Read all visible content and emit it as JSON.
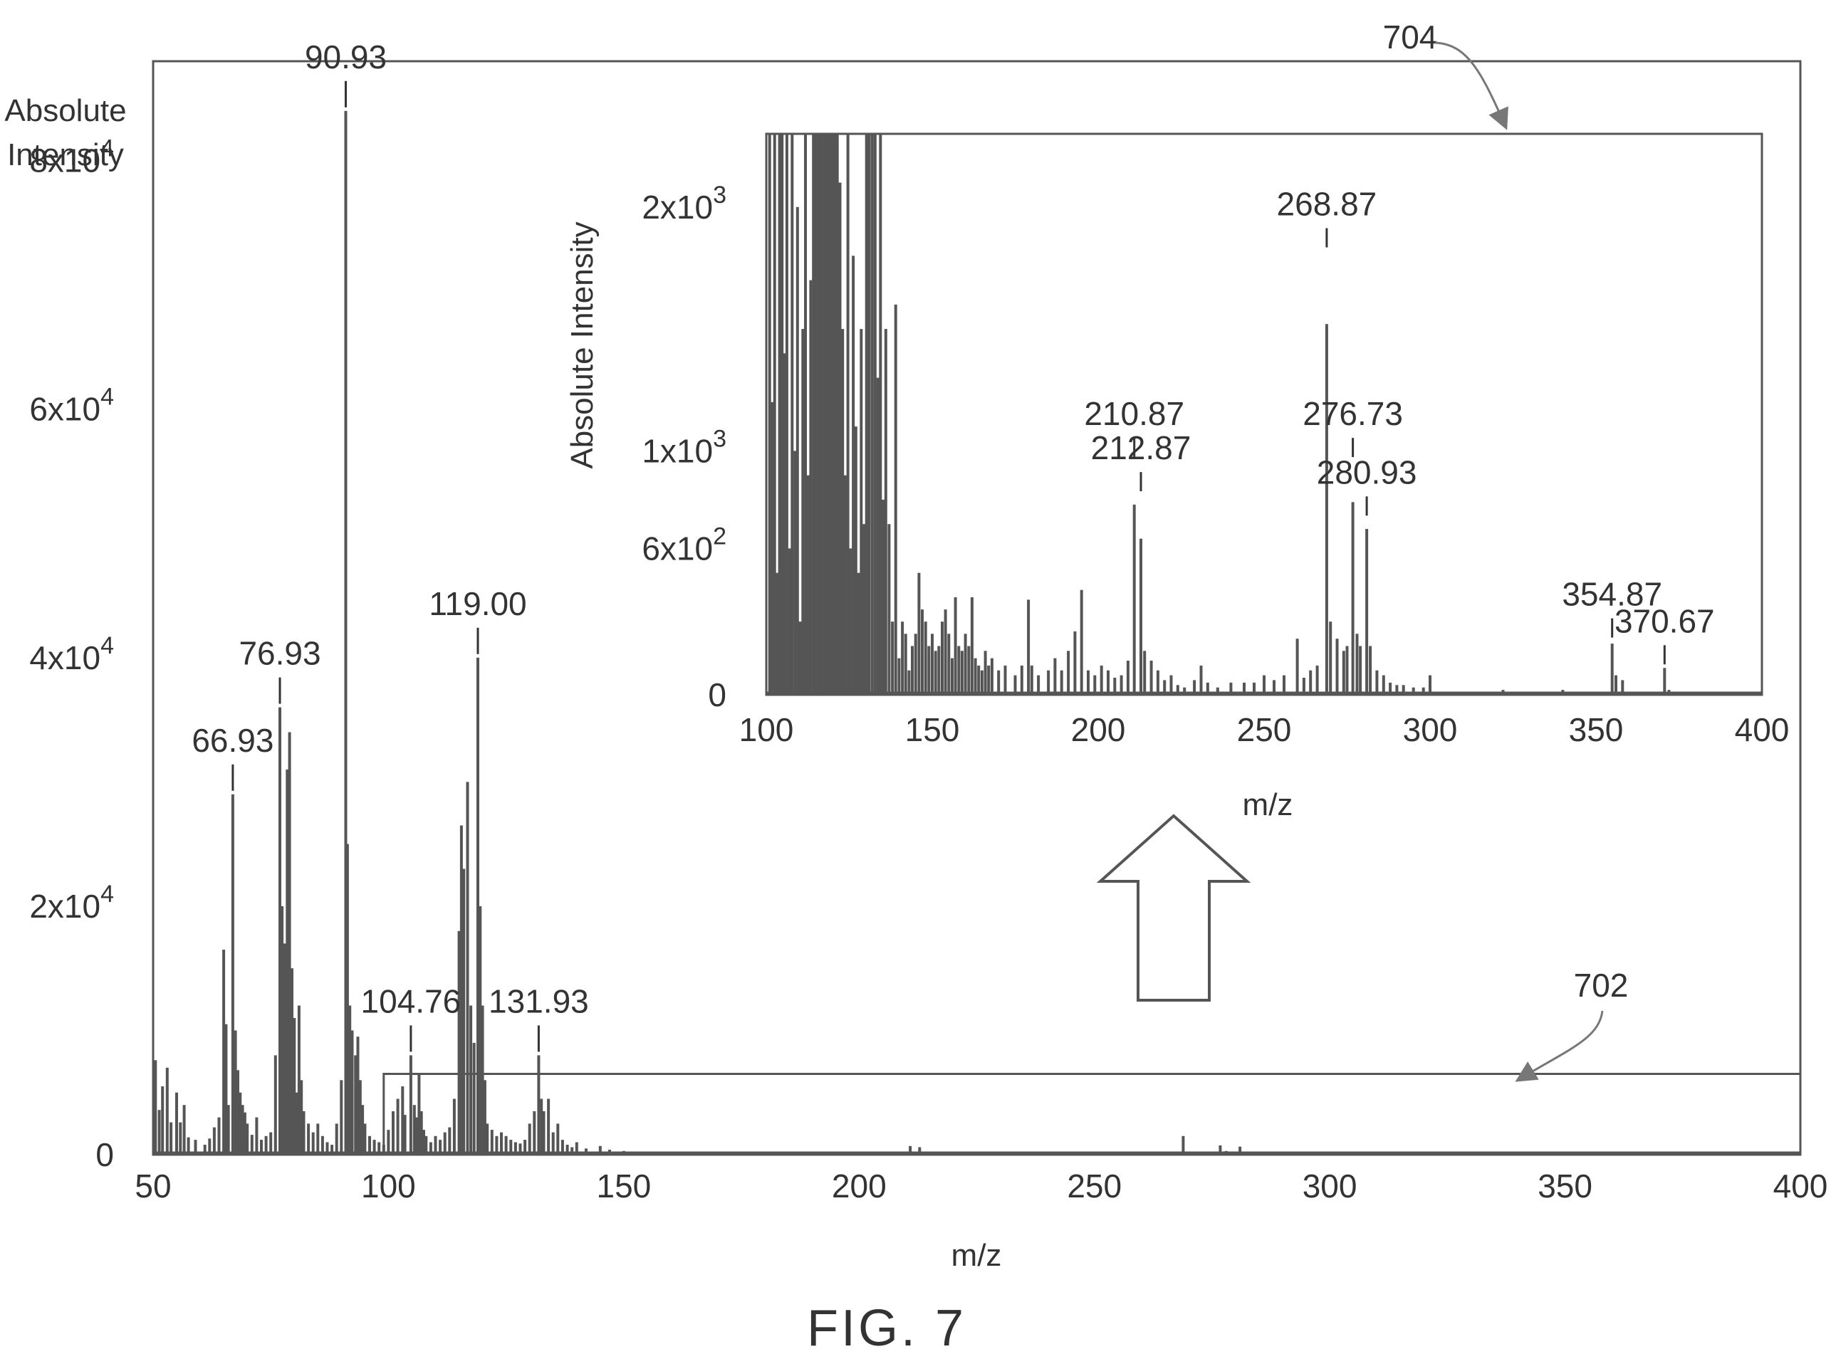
{
  "figure": {
    "caption": "FIG. 7"
  },
  "colors": {
    "ink": "#333333",
    "bars": "#555555",
    "paper": "#ffffff"
  },
  "callouts": {
    "main_box": "702",
    "inset_box": "704"
  },
  "chart_data": [
    {
      "id": "main",
      "type": "bar",
      "xlabel": "m/z",
      "ylabel_lines": [
        "Absolute",
        "Intensity"
      ],
      "xlim": [
        50,
        400
      ],
      "ylim": [
        0,
        88000
      ],
      "xticks": [
        50,
        100,
        150,
        200,
        250,
        300,
        350,
        400
      ],
      "yticks": [
        {
          "value": 0,
          "base": "0",
          "exp": ""
        },
        {
          "value": 20000,
          "base": "2x10",
          "exp": "4"
        },
        {
          "value": 40000,
          "base": "4x10",
          "exp": "4"
        },
        {
          "value": 60000,
          "base": "6x10",
          "exp": "4"
        },
        {
          "value": 80000,
          "base": "8x10",
          "exp": "4"
        }
      ],
      "grid": false,
      "zoom_region": {
        "x": [
          99,
          400
        ],
        "y": [
          0,
          6500
        ]
      },
      "peak_labels": [
        {
          "x": 66.93,
          "text": "66.93",
          "y": 29000
        },
        {
          "x": 76.93,
          "text": "76.93",
          "y": 36000
        },
        {
          "x": 90.93,
          "text": "90.93",
          "y": 84000
        },
        {
          "x": 104.76,
          "text": "104.76",
          "y": 8000
        },
        {
          "x": 119.0,
          "text": "119.00",
          "y": 40000
        },
        {
          "x": 131.93,
          "text": "131.93",
          "y": 8000
        }
      ],
      "peaks": [
        [
          50.5,
          7600
        ],
        [
          51.3,
          3600
        ],
        [
          52,
          5500
        ],
        [
          53,
          7000
        ],
        [
          53.8,
          2600
        ],
        [
          55,
          5000
        ],
        [
          55.8,
          2600
        ],
        [
          56.6,
          4000
        ],
        [
          57.5,
          1400
        ],
        [
          59,
          1200
        ],
        [
          61,
          800
        ],
        [
          62,
          1300
        ],
        [
          63,
          2200
        ],
        [
          64,
          3000
        ],
        [
          65,
          16500
        ],
        [
          65.5,
          10500
        ],
        [
          66,
          4000
        ],
        [
          66.93,
          29000
        ],
        [
          67.5,
          10000
        ],
        [
          68,
          6800
        ],
        [
          68.5,
          5000
        ],
        [
          69,
          4000
        ],
        [
          69.5,
          3400
        ],
        [
          70,
          2500
        ],
        [
          71,
          1600
        ],
        [
          72,
          3000
        ],
        [
          73,
          1200
        ],
        [
          74,
          1500
        ],
        [
          75,
          1800
        ],
        [
          76,
          8000
        ],
        [
          76.93,
          36000
        ],
        [
          77.4,
          20000
        ],
        [
          78,
          17000
        ],
        [
          78.5,
          31000
        ],
        [
          79,
          34000
        ],
        [
          79.5,
          15000
        ],
        [
          80,
          11000
        ],
        [
          80.5,
          5000
        ],
        [
          81,
          12000
        ],
        [
          81.5,
          6000
        ],
        [
          82,
          3500
        ],
        [
          83,
          2500
        ],
        [
          84,
          1800
        ],
        [
          85,
          2500
        ],
        [
          86,
          1500
        ],
        [
          87,
          1000
        ],
        [
          88,
          800
        ],
        [
          89,
          2500
        ],
        [
          90,
          6000
        ],
        [
          90.93,
          84000
        ],
        [
          91.3,
          25000
        ],
        [
          91.8,
          12000
        ],
        [
          92.3,
          10000
        ],
        [
          93,
          8000
        ],
        [
          93.5,
          9500
        ],
        [
          94,
          6000
        ],
        [
          94.5,
          4000
        ],
        [
          95,
          2500
        ],
        [
          96,
          1500
        ],
        [
          97,
          1200
        ],
        [
          98,
          1000
        ],
        [
          99,
          800
        ],
        [
          100,
          2000
        ],
        [
          101,
          3500
        ],
        [
          102,
          4500
        ],
        [
          103,
          5500
        ],
        [
          103.5,
          3200
        ],
        [
          104.76,
          8000
        ],
        [
          105.5,
          4000
        ],
        [
          106,
          3000
        ],
        [
          106.5,
          6500
        ],
        [
          107,
          3500
        ],
        [
          107.5,
          2000
        ],
        [
          108,
          1500
        ],
        [
          109,
          1000
        ],
        [
          110,
          1500
        ],
        [
          111,
          1200
        ],
        [
          112,
          1800
        ],
        [
          113,
          2200
        ],
        [
          114,
          4500
        ],
        [
          115,
          18000
        ],
        [
          115.5,
          26500
        ],
        [
          116,
          23000
        ],
        [
          116.8,
          30000
        ],
        [
          117.5,
          12000
        ],
        [
          118.2,
          9000
        ],
        [
          119.0,
          40000
        ],
        [
          119.5,
          20000
        ],
        [
          120,
          12000
        ],
        [
          120.5,
          6000
        ],
        [
          121,
          2500
        ],
        [
          122,
          2000
        ],
        [
          123,
          1500
        ],
        [
          124,
          1800
        ],
        [
          125,
          1500
        ],
        [
          126,
          1200
        ],
        [
          127,
          1000
        ],
        [
          128,
          900
        ],
        [
          129,
          1200
        ],
        [
          130,
          2500
        ],
        [
          131,
          3500
        ],
        [
          131.93,
          8000
        ],
        [
          132.5,
          4500
        ],
        [
          133,
          3500
        ],
        [
          134,
          4500
        ],
        [
          135,
          1800
        ],
        [
          136,
          2500
        ],
        [
          137,
          1200
        ],
        [
          138,
          800
        ],
        [
          139,
          600
        ],
        [
          140,
          1000
        ],
        [
          142,
          500
        ],
        [
          145,
          700
        ],
        [
          147,
          400
        ],
        [
          150,
          300
        ],
        [
          152,
          200
        ],
        [
          155,
          200
        ],
        [
          158,
          150
        ],
        [
          160,
          150
        ],
        [
          165,
          200
        ],
        [
          170,
          150
        ],
        [
          175,
          100
        ],
        [
          180,
          150
        ],
        [
          185,
          100
        ],
        [
          190,
          150
        ],
        [
          195,
          100
        ],
        [
          200,
          100
        ],
        [
          205,
          120
        ],
        [
          210.87,
          700
        ],
        [
          212.87,
          600
        ],
        [
          215,
          150
        ],
        [
          220,
          100
        ],
        [
          230,
          100
        ],
        [
          240,
          100
        ],
        [
          250,
          100
        ],
        [
          260,
          100
        ],
        [
          268.87,
          1500
        ],
        [
          270,
          200
        ],
        [
          274,
          150
        ],
        [
          276.73,
          750
        ],
        [
          278,
          300
        ],
        [
          280.93,
          650
        ],
        [
          282,
          200
        ],
        [
          290,
          100
        ],
        [
          300,
          100
        ],
        [
          320,
          80
        ],
        [
          354.87,
          150
        ],
        [
          370.67,
          100
        ]
      ]
    },
    {
      "id": "inset",
      "type": "bar",
      "xlabel": "m/z",
      "ylabel_lines": [
        "Absolute Intensity"
      ],
      "xlim": [
        100,
        400
      ],
      "ylim": [
        0,
        2300
      ],
      "xticks": [
        100,
        150,
        200,
        250,
        300,
        350,
        400
      ],
      "yticks": [
        {
          "value": 0,
          "base": "0",
          "exp": ""
        },
        {
          "value": 600,
          "base": "6x10",
          "exp": "2"
        },
        {
          "value": 1000,
          "base": "1x10",
          "exp": "3"
        },
        {
          "value": 2000,
          "base": "2x10",
          "exp": "3"
        }
      ],
      "grid": false,
      "peak_labels": [
        {
          "x": 210.87,
          "text": "210.87",
          "y": 960
        },
        {
          "x": 212.87,
          "text": "212.87",
          "y": 820
        },
        {
          "x": 268.87,
          "text": "268.87",
          "y": 1820
        },
        {
          "x": 276.73,
          "text": "276.73",
          "y": 960
        },
        {
          "x": 280.93,
          "text": "280.93",
          "y": 720
        },
        {
          "x": 354.87,
          "text": "354.87",
          "y": 220
        },
        {
          "x": 370.67,
          "text": "370.67",
          "y": 110
        }
      ],
      "peaks": [
        [
          101,
          2300
        ],
        [
          101.8,
          1200
        ],
        [
          102.5,
          2300
        ],
        [
          103.3,
          500
        ],
        [
          104,
          2300
        ],
        [
          104.76,
          2300
        ],
        [
          105.5,
          1400
        ],
        [
          106.2,
          2300
        ],
        [
          107,
          600
        ],
        [
          107.8,
          2300
        ],
        [
          108.6,
          1000
        ],
        [
          109.4,
          2000
        ],
        [
          110.2,
          300
        ],
        [
          111,
          1500
        ],
        [
          111.8,
          2300
        ],
        [
          112.6,
          900
        ],
        [
          113.4,
          1700
        ],
        [
          114.2,
          2300
        ],
        [
          115,
          2300
        ],
        [
          115.8,
          2300
        ],
        [
          116.6,
          2300
        ],
        [
          117.4,
          2300
        ],
        [
          118.2,
          2300
        ],
        [
          119,
          2300
        ],
        [
          119.8,
          2300
        ],
        [
          120.6,
          2300
        ],
        [
          121.4,
          2300
        ],
        [
          122.2,
          2100
        ],
        [
          123,
          1500
        ],
        [
          123.8,
          900
        ],
        [
          124.6,
          2300
        ],
        [
          125.4,
          600
        ],
        [
          126.2,
          1800
        ],
        [
          127,
          1100
        ],
        [
          127.8,
          500
        ],
        [
          128.6,
          1500
        ],
        [
          129.4,
          700
        ],
        [
          130.2,
          2300
        ],
        [
          131,
          2300
        ],
        [
          131.93,
          2300
        ],
        [
          132.8,
          2300
        ],
        [
          133.6,
          1300
        ],
        [
          134.4,
          2300
        ],
        [
          135.2,
          800
        ],
        [
          136,
          1500
        ],
        [
          137,
          700
        ],
        [
          138,
          300
        ],
        [
          139,
          1600
        ],
        [
          140,
          150
        ],
        [
          141,
          300
        ],
        [
          142,
          250
        ],
        [
          143,
          100
        ],
        [
          144,
          200
        ],
        [
          145,
          250
        ],
        [
          146,
          500
        ],
        [
          147,
          350
        ],
        [
          148,
          300
        ],
        [
          149,
          200
        ],
        [
          150,
          250
        ],
        [
          151,
          180
        ],
        [
          152,
          200
        ],
        [
          153,
          300
        ],
        [
          154,
          350
        ],
        [
          155,
          250
        ],
        [
          156,
          150
        ],
        [
          157,
          400
        ],
        [
          158,
          200
        ],
        [
          159,
          180
        ],
        [
          160,
          250
        ],
        [
          161,
          200
        ],
        [
          162,
          400
        ],
        [
          163,
          150
        ],
        [
          164,
          120
        ],
        [
          165,
          100
        ],
        [
          166,
          180
        ],
        [
          167,
          120
        ],
        [
          168,
          150
        ],
        [
          170,
          100
        ],
        [
          172,
          120
        ],
        [
          175,
          80
        ],
        [
          177,
          120
        ],
        [
          179,
          390
        ],
        [
          180,
          120
        ],
        [
          182,
          80
        ],
        [
          185,
          100
        ],
        [
          187,
          150
        ],
        [
          189,
          100
        ],
        [
          191,
          180
        ],
        [
          193,
          260
        ],
        [
          195,
          430
        ],
        [
          197,
          100
        ],
        [
          199,
          80
        ],
        [
          201,
          120
        ],
        [
          203,
          100
        ],
        [
          205,
          70
        ],
        [
          207,
          80
        ],
        [
          209,
          140
        ],
        [
          210.87,
          780
        ],
        [
          212.87,
          640
        ],
        [
          214,
          180
        ],
        [
          216,
          140
        ],
        [
          218,
          100
        ],
        [
          220,
          60
        ],
        [
          222,
          80
        ],
        [
          224,
          40
        ],
        [
          226,
          30
        ],
        [
          229,
          60
        ],
        [
          231,
          120
        ],
        [
          233,
          50
        ],
        [
          236,
          30
        ],
        [
          240,
          50
        ],
        [
          244,
          50
        ],
        [
          247,
          50
        ],
        [
          250,
          80
        ],
        [
          253,
          60
        ],
        [
          256,
          80
        ],
        [
          260,
          230
        ],
        [
          262,
          70
        ],
        [
          264,
          100
        ],
        [
          266,
          120
        ],
        [
          268.87,
          1520
        ],
        [
          270,
          300
        ],
        [
          272,
          230
        ],
        [
          274,
          180
        ],
        [
          275,
          200
        ],
        [
          276.73,
          790
        ],
        [
          278,
          250
        ],
        [
          279,
          200
        ],
        [
          280.93,
          680
        ],
        [
          282,
          200
        ],
        [
          284,
          100
        ],
        [
          286,
          80
        ],
        [
          288,
          50
        ],
        [
          290,
          40
        ],
        [
          292,
          40
        ],
        [
          295,
          30
        ],
        [
          298,
          30
        ],
        [
          300,
          80
        ],
        [
          322,
          20
        ],
        [
          340,
          20
        ],
        [
          354.87,
          210
        ],
        [
          356,
          80
        ],
        [
          358,
          60
        ],
        [
          370.67,
          110
        ],
        [
          372,
          20
        ]
      ]
    }
  ]
}
